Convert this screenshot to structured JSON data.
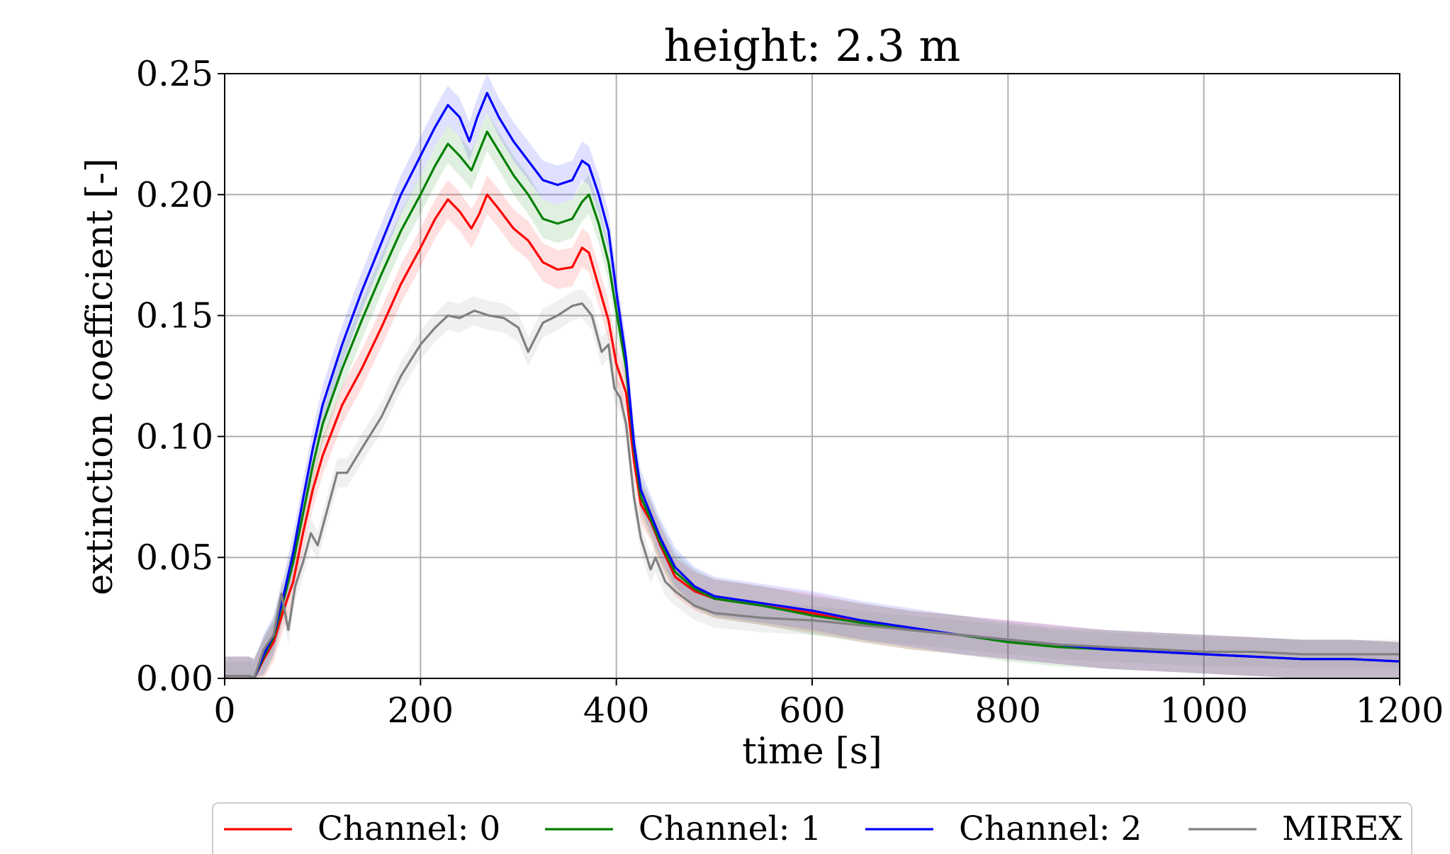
{
  "chart_data": {
    "type": "line",
    "title": "height: 2.3 m",
    "xlabel": "time [s]",
    "ylabel": "extinction coefficient [-]",
    "xlim": [
      0,
      1200
    ],
    "ylim": [
      0,
      0.25
    ],
    "x_ticks": [
      "0",
      "200",
      "400",
      "600",
      "800",
      "1000",
      "1200"
    ],
    "y_ticks": [
      "0.00",
      "0.05",
      "0.10",
      "0.15",
      "0.20",
      "0.25"
    ],
    "grid": true,
    "legend_position": "bottom-center, outside plot",
    "series": [
      {
        "name": "Channel: 0",
        "color": "#ff0000",
        "band": 0.008,
        "points": [
          [
            0,
            0.001
          ],
          [
            25,
            0.001
          ],
          [
            30,
            0.0
          ],
          [
            40,
            0.008
          ],
          [
            50,
            0.015
          ],
          [
            60,
            0.028
          ],
          [
            70,
            0.04
          ],
          [
            80,
            0.06
          ],
          [
            90,
            0.078
          ],
          [
            100,
            0.092
          ],
          [
            120,
            0.113
          ],
          [
            140,
            0.128
          ],
          [
            160,
            0.145
          ],
          [
            180,
            0.163
          ],
          [
            200,
            0.178
          ],
          [
            215,
            0.19
          ],
          [
            228,
            0.198
          ],
          [
            240,
            0.193
          ],
          [
            252,
            0.186
          ],
          [
            260,
            0.192
          ],
          [
            268,
            0.2
          ],
          [
            280,
            0.194
          ],
          [
            295,
            0.186
          ],
          [
            310,
            0.181
          ],
          [
            325,
            0.172
          ],
          [
            340,
            0.169
          ],
          [
            355,
            0.17
          ],
          [
            365,
            0.178
          ],
          [
            372,
            0.176
          ],
          [
            382,
            0.162
          ],
          [
            392,
            0.148
          ],
          [
            400,
            0.13
          ],
          [
            410,
            0.118
          ],
          [
            418,
            0.09
          ],
          [
            425,
            0.072
          ],
          [
            435,
            0.065
          ],
          [
            445,
            0.055
          ],
          [
            460,
            0.042
          ],
          [
            480,
            0.036
          ],
          [
            500,
            0.033
          ],
          [
            550,
            0.03
          ],
          [
            600,
            0.027
          ],
          [
            650,
            0.023
          ],
          [
            700,
            0.02
          ],
          [
            750,
            0.018
          ],
          [
            800,
            0.016
          ],
          [
            850,
            0.014
          ],
          [
            900,
            0.012
          ],
          [
            950,
            0.011
          ],
          [
            1000,
            0.01
          ],
          [
            1050,
            0.009
          ],
          [
            1100,
            0.008
          ],
          [
            1150,
            0.008
          ],
          [
            1200,
            0.007
          ]
        ]
      },
      {
        "name": "Channel: 1",
        "color": "#008000",
        "band": 0.008,
        "points": [
          [
            0,
            0.001
          ],
          [
            25,
            0.001
          ],
          [
            30,
            0.0
          ],
          [
            40,
            0.009
          ],
          [
            50,
            0.017
          ],
          [
            60,
            0.032
          ],
          [
            70,
            0.048
          ],
          [
            80,
            0.068
          ],
          [
            90,
            0.088
          ],
          [
            100,
            0.105
          ],
          [
            120,
            0.128
          ],
          [
            140,
            0.148
          ],
          [
            160,
            0.167
          ],
          [
            180,
            0.185
          ],
          [
            200,
            0.2
          ],
          [
            215,
            0.212
          ],
          [
            228,
            0.221
          ],
          [
            240,
            0.216
          ],
          [
            252,
            0.21
          ],
          [
            260,
            0.218
          ],
          [
            268,
            0.226
          ],
          [
            280,
            0.218
          ],
          [
            295,
            0.208
          ],
          [
            310,
            0.2
          ],
          [
            325,
            0.19
          ],
          [
            340,
            0.188
          ],
          [
            355,
            0.19
          ],
          [
            365,
            0.197
          ],
          [
            372,
            0.2
          ],
          [
            382,
            0.188
          ],
          [
            392,
            0.172
          ],
          [
            400,
            0.152
          ],
          [
            410,
            0.128
          ],
          [
            418,
            0.095
          ],
          [
            425,
            0.075
          ],
          [
            435,
            0.066
          ],
          [
            445,
            0.056
          ],
          [
            460,
            0.044
          ],
          [
            480,
            0.037
          ],
          [
            500,
            0.033
          ],
          [
            550,
            0.03
          ],
          [
            600,
            0.026
          ],
          [
            650,
            0.023
          ],
          [
            700,
            0.02
          ],
          [
            750,
            0.018
          ],
          [
            800,
            0.015
          ],
          [
            850,
            0.013
          ],
          [
            900,
            0.012
          ],
          [
            950,
            0.011
          ],
          [
            1000,
            0.01
          ],
          [
            1050,
            0.009
          ],
          [
            1100,
            0.008
          ],
          [
            1150,
            0.008
          ],
          [
            1200,
            0.007
          ]
        ]
      },
      {
        "name": "Channel: 2",
        "color": "#0000ff",
        "band": 0.008,
        "points": [
          [
            0,
            0.001
          ],
          [
            25,
            0.001
          ],
          [
            30,
            0.0
          ],
          [
            40,
            0.01
          ],
          [
            50,
            0.018
          ],
          [
            60,
            0.034
          ],
          [
            70,
            0.052
          ],
          [
            80,
            0.074
          ],
          [
            90,
            0.095
          ],
          [
            100,
            0.113
          ],
          [
            120,
            0.138
          ],
          [
            140,
            0.16
          ],
          [
            160,
            0.18
          ],
          [
            180,
            0.2
          ],
          [
            200,
            0.216
          ],
          [
            215,
            0.228
          ],
          [
            228,
            0.237
          ],
          [
            240,
            0.232
          ],
          [
            250,
            0.222
          ],
          [
            258,
            0.232
          ],
          [
            268,
            0.242
          ],
          [
            280,
            0.232
          ],
          [
            295,
            0.222
          ],
          [
            310,
            0.214
          ],
          [
            325,
            0.206
          ],
          [
            340,
            0.204
          ],
          [
            355,
            0.206
          ],
          [
            365,
            0.214
          ],
          [
            372,
            0.212
          ],
          [
            382,
            0.2
          ],
          [
            392,
            0.185
          ],
          [
            400,
            0.16
          ],
          [
            410,
            0.132
          ],
          [
            418,
            0.097
          ],
          [
            425,
            0.078
          ],
          [
            435,
            0.068
          ],
          [
            445,
            0.058
          ],
          [
            460,
            0.046
          ],
          [
            480,
            0.038
          ],
          [
            500,
            0.034
          ],
          [
            550,
            0.031
          ],
          [
            600,
            0.028
          ],
          [
            650,
            0.024
          ],
          [
            700,
            0.021
          ],
          [
            750,
            0.018
          ],
          [
            800,
            0.016
          ],
          [
            850,
            0.014
          ],
          [
            900,
            0.012
          ],
          [
            950,
            0.011
          ],
          [
            1000,
            0.01
          ],
          [
            1050,
            0.009
          ],
          [
            1100,
            0.008
          ],
          [
            1150,
            0.008
          ],
          [
            1200,
            0.007
          ]
        ]
      },
      {
        "name": "MIREX",
        "color": "#808080",
        "band": 0.006,
        "points": [
          [
            0,
            0.001
          ],
          [
            25,
            0.001
          ],
          [
            30,
            0.0
          ],
          [
            40,
            0.012
          ],
          [
            50,
            0.018
          ],
          [
            58,
            0.035
          ],
          [
            65,
            0.02
          ],
          [
            72,
            0.038
          ],
          [
            80,
            0.048
          ],
          [
            88,
            0.06
          ],
          [
            95,
            0.055
          ],
          [
            105,
            0.07
          ],
          [
            115,
            0.085
          ],
          [
            125,
            0.085
          ],
          [
            140,
            0.095
          ],
          [
            160,
            0.108
          ],
          [
            180,
            0.125
          ],
          [
            200,
            0.138
          ],
          [
            215,
            0.145
          ],
          [
            228,
            0.15
          ],
          [
            240,
            0.149
          ],
          [
            255,
            0.152
          ],
          [
            270,
            0.15
          ],
          [
            285,
            0.149
          ],
          [
            300,
            0.145
          ],
          [
            310,
            0.135
          ],
          [
            325,
            0.147
          ],
          [
            340,
            0.15
          ],
          [
            355,
            0.154
          ],
          [
            365,
            0.155
          ],
          [
            375,
            0.15
          ],
          [
            385,
            0.135
          ],
          [
            392,
            0.138
          ],
          [
            398,
            0.12
          ],
          [
            404,
            0.116
          ],
          [
            410,
            0.105
          ],
          [
            418,
            0.075
          ],
          [
            425,
            0.058
          ],
          [
            435,
            0.045
          ],
          [
            440,
            0.05
          ],
          [
            450,
            0.04
          ],
          [
            460,
            0.036
          ],
          [
            480,
            0.03
          ],
          [
            500,
            0.027
          ],
          [
            550,
            0.025
          ],
          [
            600,
            0.024
          ],
          [
            650,
            0.022
          ],
          [
            700,
            0.02
          ],
          [
            750,
            0.018
          ],
          [
            800,
            0.016
          ],
          [
            850,
            0.014
          ],
          [
            900,
            0.013
          ],
          [
            950,
            0.012
          ],
          [
            1000,
            0.011
          ],
          [
            1050,
            0.011
          ],
          [
            1100,
            0.01
          ],
          [
            1150,
            0.01
          ],
          [
            1200,
            0.01
          ]
        ]
      }
    ]
  }
}
